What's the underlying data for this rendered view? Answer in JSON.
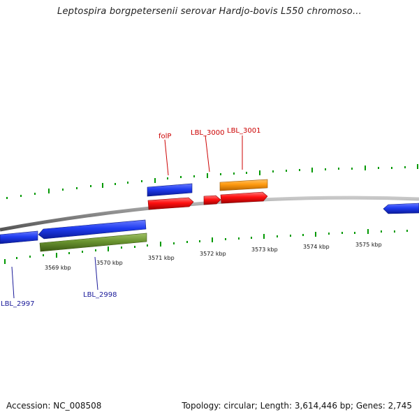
{
  "title": "Leptospira borgpetersenii serovar Hardjo-bovis L550 chromoso...",
  "footer": {
    "accession": "Accession: NC_008508",
    "summary": "Topology: circular; Length: 3,614,446 bp; Genes: 2,745"
  },
  "scale_labels": [
    "3569 kbp",
    "3570 kbp",
    "3571 kbp",
    "3572 kbp",
    "3573 kbp",
    "3574 kbp",
    "3575 kbp"
  ],
  "gene_labels": {
    "folP": "folP",
    "LBL_3000": "LBL_3000",
    "LBL_3001": "LBL_3001",
    "LBL_2997": "LBL_2997",
    "LBL_2998": "LBL_2998"
  },
  "colors": {
    "forward_cds": "#ee0000",
    "forward_cds_alt": "#ff9900",
    "reverse_cds": "#1133ee",
    "reverse_cds_alt": "#669933",
    "backbone": "#888888",
    "ticks": "#009900",
    "label_red": "#cc0000",
    "label_blue": "#1a1a99"
  }
}
